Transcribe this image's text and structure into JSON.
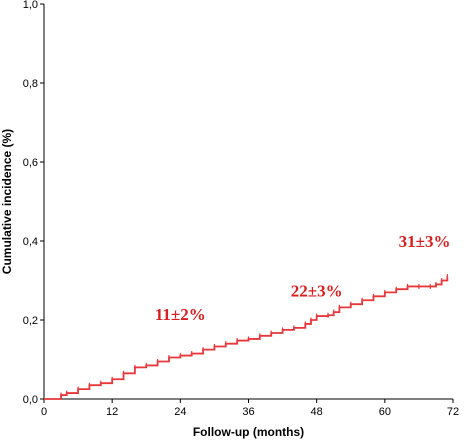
{
  "chart_data": {
    "type": "line",
    "title": "",
    "xlabel": "Follow-up (months)",
    "ylabel": "Cumulative incidence (%)",
    "xlim": [
      0,
      72
    ],
    "ylim": [
      0,
      1.0
    ],
    "x_ticks": [
      0,
      12,
      24,
      36,
      48,
      60,
      72
    ],
    "x_tick_labels": [
      "0",
      "12",
      "24",
      "36",
      "48",
      "60",
      "72"
    ],
    "y_ticks": [
      0,
      0.2,
      0.4,
      0.6,
      0.8,
      1.0
    ],
    "y_tick_labels": [
      "0,0",
      "0,2",
      "0,4",
      "0,6",
      "0,8",
      "1,0"
    ],
    "grid": false,
    "legend": "none",
    "curve_type": "step",
    "series": [
      {
        "x": [
          0,
          3,
          4,
          6,
          8,
          10,
          12,
          14,
          16,
          18,
          20,
          22,
          24,
          26,
          28,
          30,
          32,
          34,
          36,
          38,
          40,
          42,
          44,
          46,
          47,
          48,
          50,
          51,
          52,
          54,
          56,
          58,
          60,
          62,
          64,
          66,
          68,
          69,
          70,
          71
        ],
        "y": [
          0,
          0.01,
          0.015,
          0.025,
          0.035,
          0.04,
          0.05,
          0.065,
          0.08,
          0.085,
          0.095,
          0.105,
          0.11,
          0.115,
          0.125,
          0.133,
          0.14,
          0.148,
          0.152,
          0.16,
          0.167,
          0.175,
          0.18,
          0.19,
          0.2,
          0.21,
          0.212,
          0.22,
          0.232,
          0.24,
          0.25,
          0.26,
          0.27,
          0.278,
          0.285,
          0.285,
          0.285,
          0.29,
          0.3,
          0.31
        ]
      }
    ],
    "annotations": [
      {
        "text": "11±2%",
        "x": 24,
        "y": 0.2
      },
      {
        "text": "22±3%",
        "x": 48,
        "y": 0.26
      },
      {
        "text": "31±3%",
        "x": 67,
        "y": 0.385
      }
    ]
  },
  "colors": {
    "curve": "#e8373a",
    "annotation": "#d81e1e",
    "axis": "#000000",
    "background": "#ffffff"
  }
}
